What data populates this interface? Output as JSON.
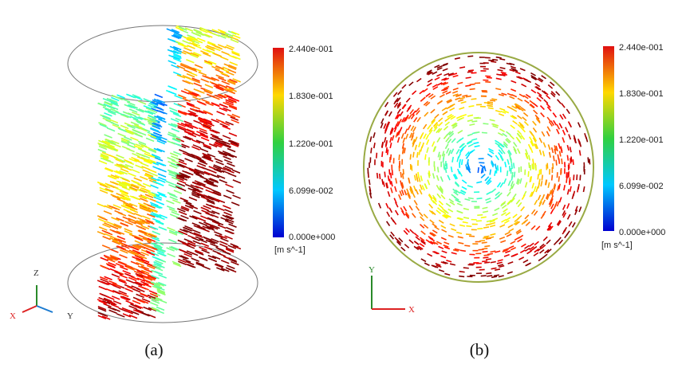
{
  "panels": [
    {
      "caption": "(a)",
      "colorbar": {
        "labels": [
          "2.440e-001",
          "1.830e-001",
          "1.220e-001",
          "6.099e-002",
          "0.000e+000"
        ],
        "unit": "[m s^-1]"
      },
      "axes": {
        "up": "Z",
        "left": "X",
        "right": "Y"
      }
    },
    {
      "caption": "(b)",
      "colorbar": {
        "labels": [
          "2.440e-001",
          "1.830e-001",
          "1.220e-001",
          "6.099e-002",
          "0.000e+000"
        ],
        "unit": "[m s^-1]"
      },
      "axes": {
        "up": "Y",
        "right": "X"
      }
    }
  ]
}
